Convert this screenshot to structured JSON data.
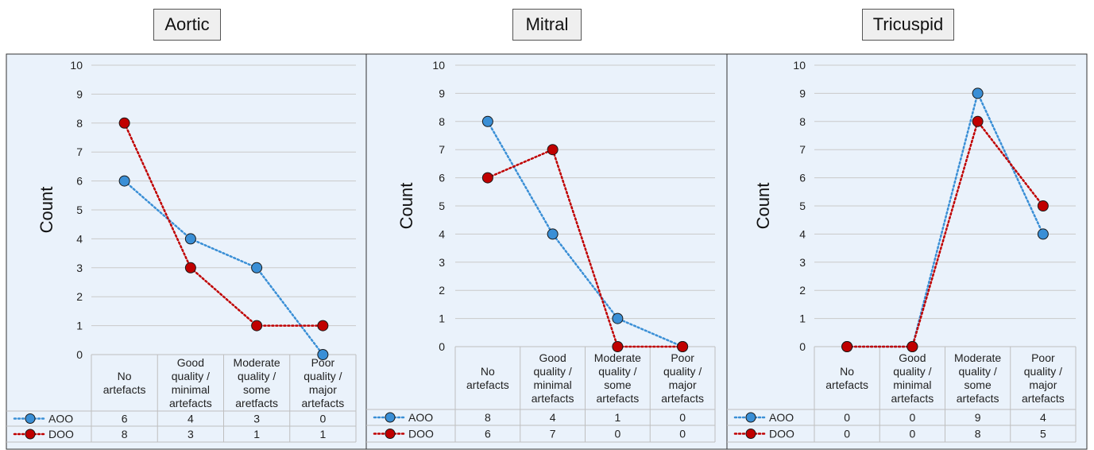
{
  "chart_data": [
    {
      "type": "line",
      "title": "Aortic",
      "ylabel": "Count",
      "ylim": [
        0,
        10
      ],
      "yticks": [
        "0",
        "1",
        "2",
        "3",
        "4",
        "5",
        "6",
        "7",
        "8",
        "9",
        "10"
      ],
      "categories": [
        [
          "No",
          "artefacts"
        ],
        [
          "Good",
          "quality /",
          "minimal",
          "artefacts"
        ],
        [
          "Moderate",
          "quality /",
          "some",
          "aretfacts"
        ],
        [
          "Poor",
          "quality /",
          "major",
          "artefacts"
        ]
      ],
      "series": [
        {
          "name": "AOO",
          "values": [
            6,
            4,
            3,
            0
          ],
          "color": "#3a8fd6"
        },
        {
          "name": "DOO",
          "values": [
            8,
            3,
            1,
            1
          ],
          "color": "#c00000"
        }
      ],
      "grid": true,
      "legend": "data-table"
    },
    {
      "type": "line",
      "title": "Mitral",
      "ylabel": "Count",
      "ylim": [
        0,
        10
      ],
      "yticks": [
        "0",
        "1",
        "2",
        "3",
        "4",
        "5",
        "6",
        "7",
        "8",
        "9",
        "10"
      ],
      "categories": [
        [
          "No",
          "artefacts"
        ],
        [
          "Good",
          "quality /",
          "minimal",
          "artefacts"
        ],
        [
          "Moderate",
          "quality /",
          "some",
          "artefacts"
        ],
        [
          "Poor",
          "quality /",
          "major",
          "artefacts"
        ]
      ],
      "series": [
        {
          "name": "AOO",
          "values": [
            8,
            4,
            1,
            0
          ],
          "color": "#3a8fd6"
        },
        {
          "name": "DOO",
          "values": [
            6,
            7,
            0,
            0
          ],
          "color": "#c00000"
        }
      ],
      "grid": true,
      "legend": "data-table"
    },
    {
      "type": "line",
      "title": "Tricuspid",
      "ylabel": "Count",
      "ylim": [
        0,
        10
      ],
      "yticks": [
        "0",
        "1",
        "2",
        "3",
        "4",
        "5",
        "6",
        "7",
        "8",
        "9",
        "10"
      ],
      "categories": [
        [
          "No",
          "artefacts"
        ],
        [
          "Good",
          "quality /",
          "minimal",
          "artefacts"
        ],
        [
          "Moderate",
          "quality /",
          "some",
          "artefacts"
        ],
        [
          "Poor",
          "quality /",
          "major",
          "artefacts"
        ]
      ],
      "series": [
        {
          "name": "AOO",
          "values": [
            0,
            0,
            9,
            4
          ],
          "color": "#3a8fd6"
        },
        {
          "name": "DOO",
          "values": [
            0,
            0,
            8,
            5
          ],
          "color": "#c00000"
        }
      ],
      "grid": true,
      "legend": "data-table"
    }
  ]
}
